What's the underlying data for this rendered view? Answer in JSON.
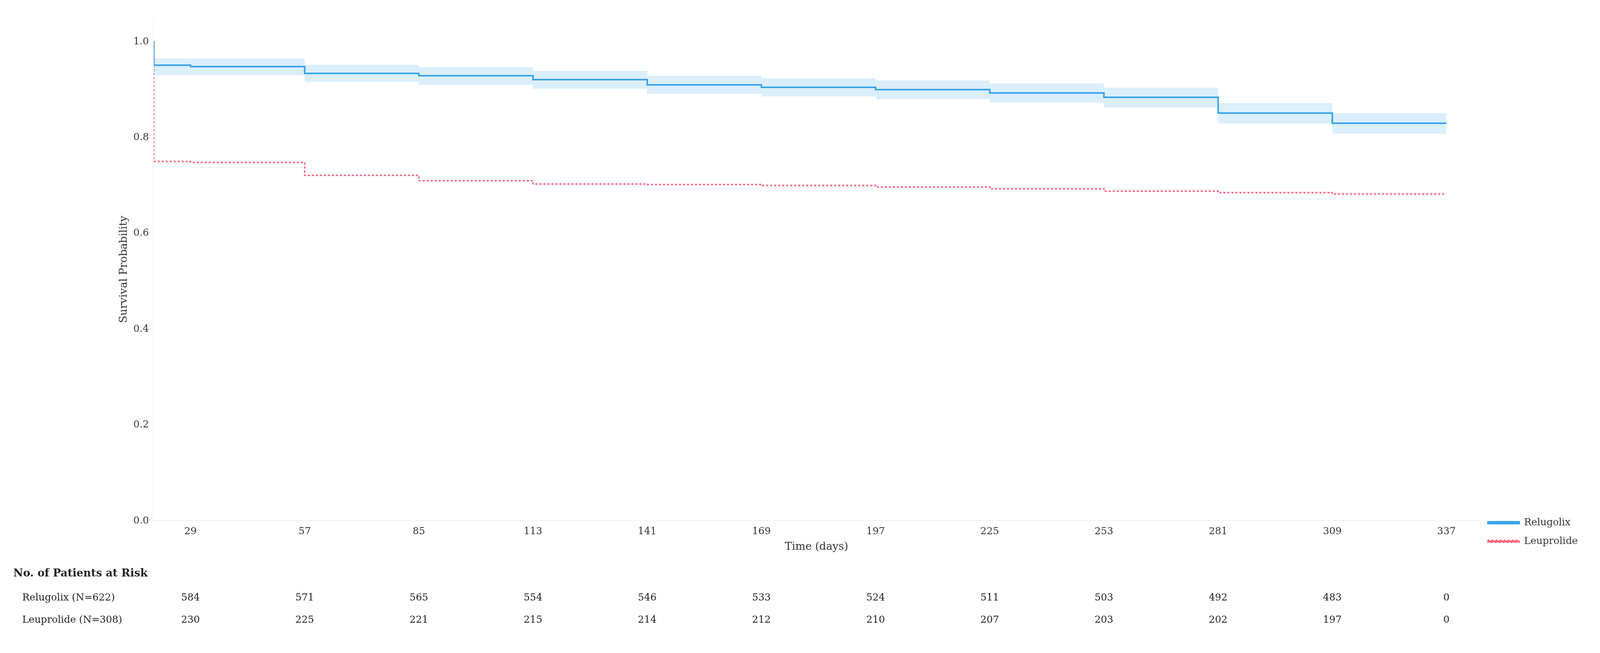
{
  "chart_data": {
    "type": "step",
    "x_label": "Time (days)",
    "y_label": "Survival Probability",
    "series": [
      {
        "name": "Relugolix",
        "line_style": "solid",
        "x": [
          20,
          29,
          57,
          85,
          113,
          141,
          169,
          197,
          225,
          253,
          281,
          309,
          337
        ],
        "values": [
          1.0,
          0.951,
          0.948,
          0.934,
          0.929,
          0.921,
          0.91,
          0.905,
          0.9,
          0.893,
          0.884,
          0.851,
          0.83
        ]
      },
      {
        "name": "Leuprolide",
        "line_style": "dotted",
        "x": [
          20,
          29,
          57,
          85,
          113,
          141,
          169,
          197,
          225,
          253,
          281,
          309,
          337
        ],
        "values": [
          1.0,
          0.75,
          0.748,
          0.721,
          0.71,
          0.703,
          0.702,
          0.7,
          0.697,
          0.693,
          0.688,
          0.685,
          0.682
        ]
      }
    ],
    "confidence_band": {
      "series": "Relugolix",
      "x": [
        20,
        57,
        85,
        113,
        141,
        169,
        197,
        225,
        253,
        281,
        309,
        337
      ],
      "upper": [
        0.968,
        0.965,
        0.952,
        0.947,
        0.939,
        0.929,
        0.924,
        0.919,
        0.913,
        0.904,
        0.872,
        0.851
      ],
      "lower": [
        0.934,
        0.93,
        0.916,
        0.91,
        0.902,
        0.891,
        0.886,
        0.88,
        0.873,
        0.863,
        0.829,
        0.808
      ]
    },
    "xlim": [
      20,
      345
    ],
    "xticks": [
      29,
      57,
      85,
      113,
      141,
      169,
      197,
      225,
      253,
      281,
      309,
      337
    ],
    "ylim": [
      0.0,
      1.05
    ],
    "yticks": [
      {
        "value": 0.0,
        "label": "0.0"
      },
      0.2,
      0.4,
      0.6,
      0.8,
      {
        "value": 1.0,
        "label": "1.0"
      }
    ],
    "grid": false,
    "legend": "lower right",
    "risk_table": {
      "title": "No. of Patients at Risk",
      "rows": [
        {
          "label": "Relugolix (N=622)",
          "values": [
            584,
            571,
            565,
            554,
            546,
            533,
            524,
            511,
            503,
            492,
            483,
            0
          ]
        },
        {
          "label": "Leuprolide (N=308)",
          "values": [
            230,
            225,
            221,
            215,
            214,
            212,
            210,
            207,
            203,
            202,
            197,
            0
          ]
        }
      ]
    }
  }
}
